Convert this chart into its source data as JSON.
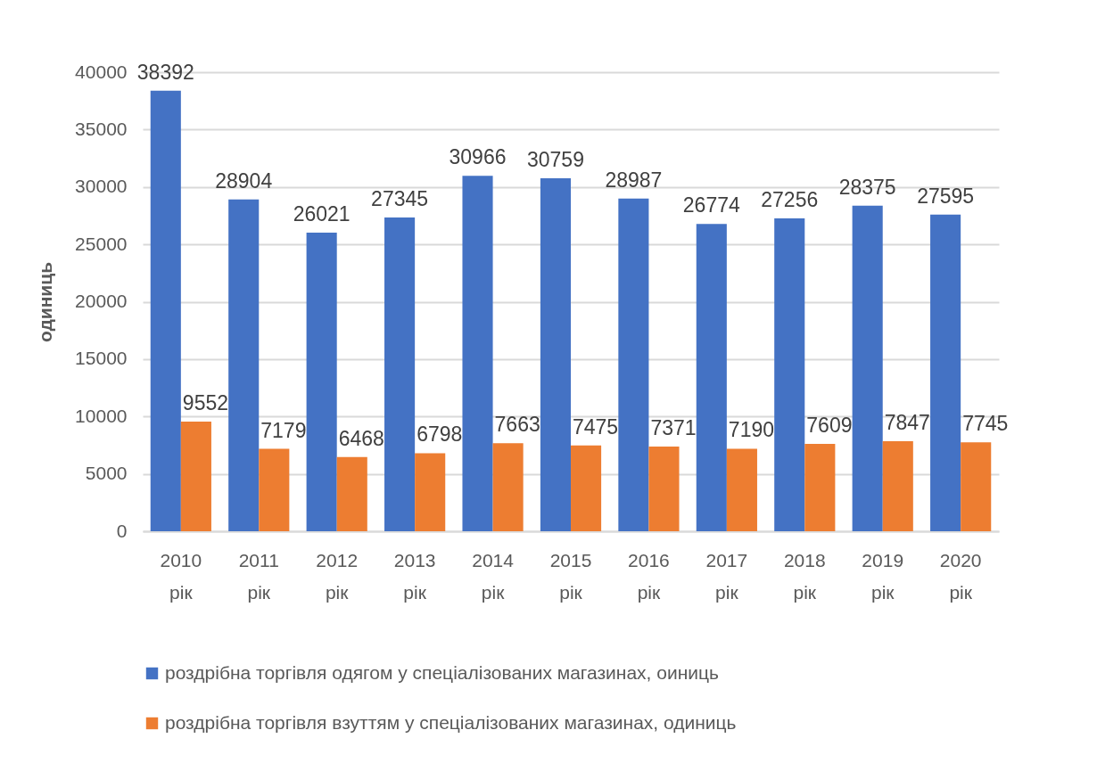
{
  "chart_data": {
    "type": "bar",
    "categories": [
      "2010 рік",
      "2011 рік",
      "2012 рік",
      "2013 рік",
      "2014 рік",
      "2015 рік",
      "2016 рік",
      "2017 рік",
      "2018 рік",
      "2019 рік",
      "2020 рік"
    ],
    "series": [
      {
        "name": "роздрібна торгівля одягом у спеціалізованих магазинах, оиниць",
        "color": "#4472c4",
        "values": [
          38392,
          28904,
          26021,
          27345,
          30966,
          30759,
          28987,
          26774,
          27256,
          28375,
          27595
        ]
      },
      {
        "name": "роздрібна торгівля взуттям у спеціалізованих магазинах, одиниць",
        "color": "#ed7d31",
        "values": [
          9552,
          7179,
          6468,
          6798,
          7663,
          7475,
          7371,
          7190,
          7609,
          7847,
          7745
        ]
      }
    ],
    "ylabel": "одиниць",
    "ylim": [
      0,
      40000
    ],
    "yticks": [
      0,
      5000,
      10000,
      15000,
      20000,
      25000,
      30000,
      35000,
      40000
    ],
    "grid": "y",
    "legend": "bottom",
    "data_labels": true
  }
}
